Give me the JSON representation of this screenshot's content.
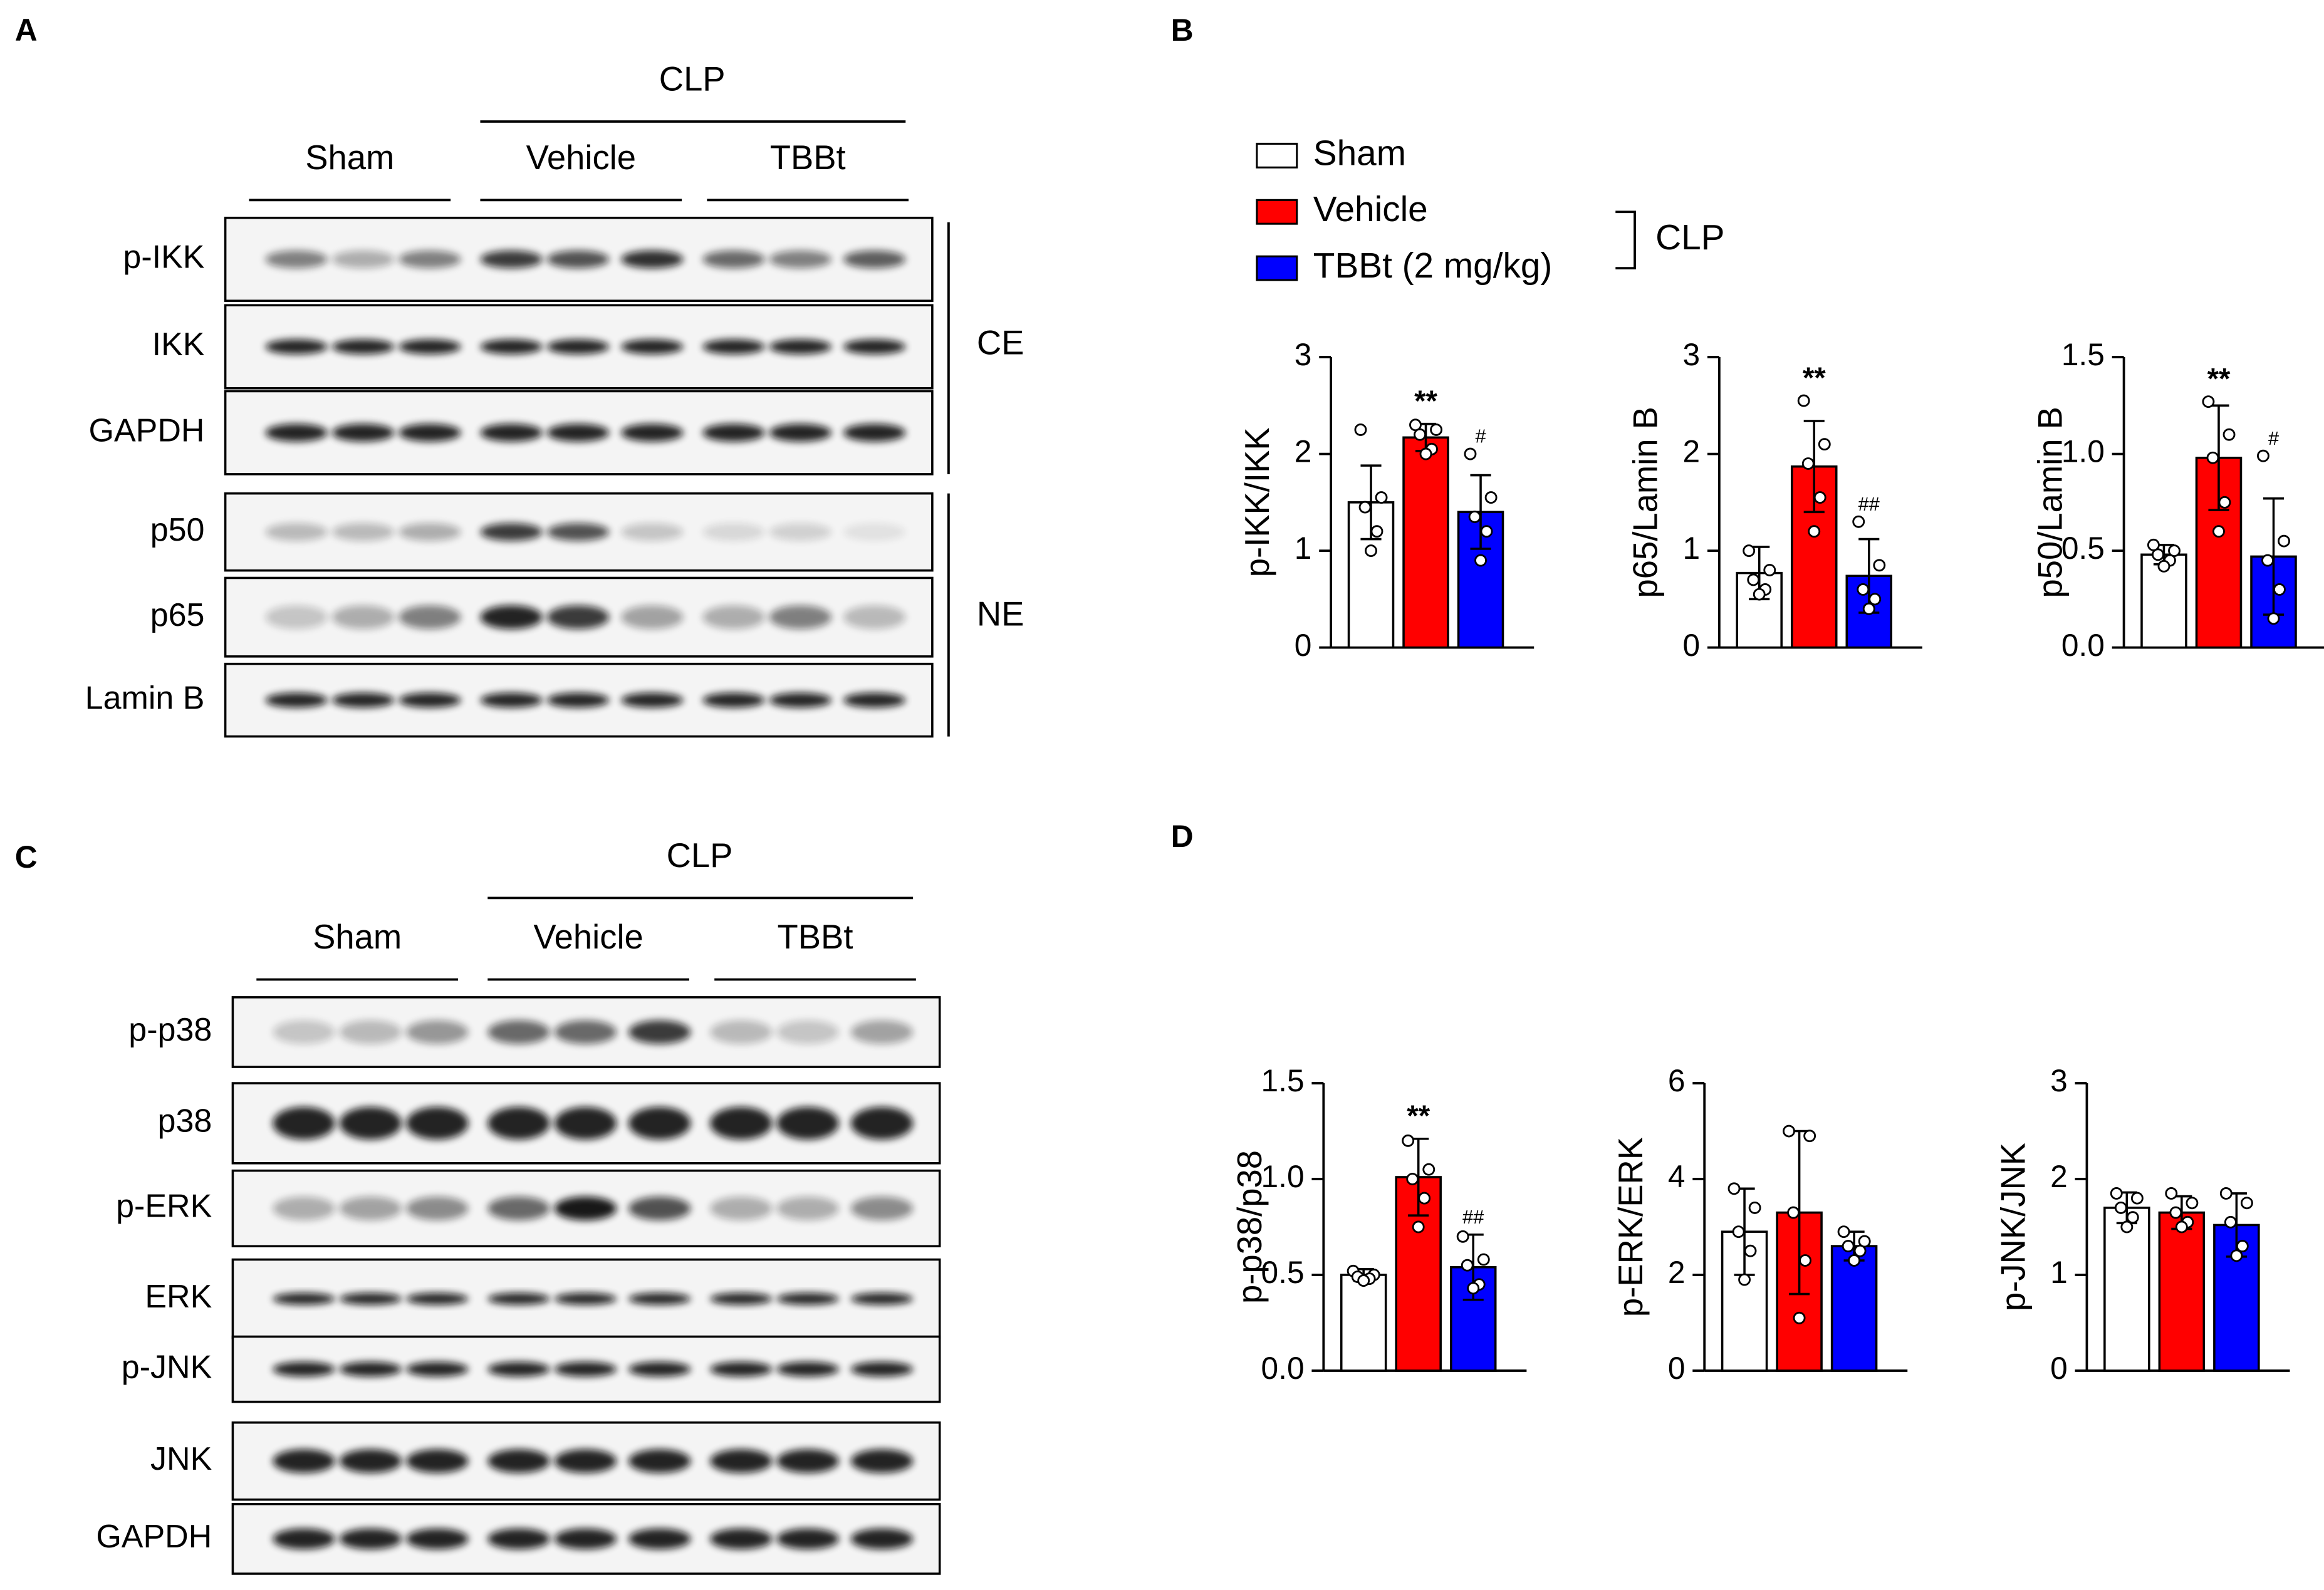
{
  "panel_labels": [
    "A",
    "B",
    "C",
    "D"
  ],
  "blot_A": {
    "group_header": "CLP",
    "groups": [
      "Sham",
      "Vehicle",
      "TBBt"
    ],
    "rows": [
      "p-IKK",
      "IKK",
      "GAPDH",
      "p50",
      "p65",
      "Lamin B"
    ],
    "fractions": [
      "CE",
      "NE"
    ]
  },
  "blot_C": {
    "group_header": "CLP",
    "groups": [
      "Sham",
      "Vehicle",
      "TBBt"
    ],
    "rows": [
      "p-p38",
      "p38",
      "p-ERK",
      "ERK",
      "p-JNK",
      "JNK",
      "GAPDH"
    ]
  },
  "legend": {
    "items": [
      {
        "name": "Sham",
        "color": "#ffffff"
      },
      {
        "name": "Vehicle",
        "color": "#ff0000"
      },
      {
        "name": "TBBt (2 mg/kg)",
        "color": "#0000ff"
      }
    ],
    "bracket": "CLP"
  },
  "chart_data": [
    {
      "type": "bar",
      "ylabel": "p-IKK/IKK",
      "categories": [
        null,
        null,
        null
      ],
      "colors": [
        "#ffffff",
        "#ff0000",
        "#0000ff"
      ],
      "values": [
        1.5,
        2.17,
        1.4
      ],
      "errors": [
        0.38,
        0.14,
        0.38
      ],
      "points": [
        [
          2.25,
          1.55,
          1.45,
          1.2,
          1.0
        ],
        [
          2.3,
          2.25,
          2.2,
          2.05,
          2.0
        ],
        [
          2.0,
          1.55,
          1.35,
          1.2,
          0.9
        ]
      ],
      "value_annotations": [
        null,
        "**",
        "#"
      ],
      "ylim": [
        0,
        3
      ],
      "yticks": [
        0,
        1,
        2,
        3
      ]
    },
    {
      "type": "bar",
      "ylabel": "p65/Lamin B",
      "categories": [
        null,
        null,
        null
      ],
      "colors": [
        "#ffffff",
        "#ff0000",
        "#0000ff"
      ],
      "values": [
        0.77,
        1.87,
        0.74
      ],
      "errors": [
        0.27,
        0.47,
        0.38
      ],
      "points": [
        [
          1.0,
          0.8,
          0.7,
          0.6,
          0.55
        ],
        [
          2.55,
          2.1,
          1.9,
          1.55,
          1.2
        ],
        [
          1.3,
          0.85,
          0.6,
          0.5,
          0.4
        ]
      ],
      "value_annotations": [
        null,
        "**",
        "##"
      ],
      "ylim": [
        0,
        3
      ],
      "yticks": [
        0,
        1,
        2,
        3
      ]
    },
    {
      "type": "bar",
      "ylabel": "p50/Lamin B",
      "categories": [
        null,
        null,
        null
      ],
      "colors": [
        "#ffffff",
        "#ff0000",
        "#0000ff"
      ],
      "values": [
        0.48,
        0.98,
        0.47
      ],
      "errors": [
        0.05,
        0.27,
        0.3
      ],
      "points": [
        [
          0.53,
          0.5,
          0.48,
          0.45,
          0.42
        ],
        [
          1.27,
          1.1,
          0.98,
          0.75,
          0.6
        ],
        [
          0.99,
          0.55,
          0.45,
          0.3,
          0.15
        ]
      ],
      "value_annotations": [
        null,
        "**",
        "#"
      ],
      "ylim": [
        0,
        1.5
      ],
      "yticks": [
        {
          "value": 0,
          "label": "0.0"
        },
        {
          "value": 0.5,
          "label": "0.5"
        },
        {
          "value": 1,
          "label": "1.0"
        },
        {
          "value": 1.5,
          "label": "1.5"
        }
      ]
    },
    {
      "type": "bar",
      "ylabel": "p-p38/p38",
      "categories": [
        null,
        null,
        null
      ],
      "colors": [
        "#ffffff",
        "#ff0000",
        "#0000ff"
      ],
      "values": [
        0.5,
        1.01,
        0.54
      ],
      "errors": [
        0.03,
        0.2,
        0.17
      ],
      "points": [
        [
          0.52,
          0.5,
          0.49,
          0.48,
          0.47
        ],
        [
          1.2,
          1.05,
          1.0,
          0.9,
          0.75
        ],
        [
          0.7,
          0.58,
          0.55,
          0.45,
          0.43
        ]
      ],
      "value_annotations": [
        null,
        "**",
        "##"
      ],
      "ylim": [
        0,
        1.5
      ],
      "yticks": [
        {
          "value": 0,
          "label": "0.0"
        },
        {
          "value": 0.5,
          "label": "0.5"
        },
        {
          "value": 1,
          "label": "1.0"
        },
        {
          "value": 1.5,
          "label": "1.5"
        }
      ]
    },
    {
      "type": "bar",
      "ylabel": "p-ERK/ERK",
      "categories": [
        null,
        null,
        null
      ],
      "colors": [
        "#ffffff",
        "#ff0000",
        "#0000ff"
      ],
      "values": [
        2.9,
        3.3,
        2.6
      ],
      "errors": [
        0.9,
        1.7,
        0.3
      ],
      "points": [
        [
          3.8,
          3.4,
          2.9,
          2.5,
          1.9
        ],
        [
          5.0,
          4.9,
          3.3,
          2.3,
          1.1
        ],
        [
          2.9,
          2.7,
          2.6,
          2.5,
          2.3
        ]
      ],
      "ylim": [
        0,
        6
      ],
      "yticks": [
        0,
        2,
        4,
        6
      ]
    },
    {
      "type": "bar",
      "ylabel": "p-JNK/JNK",
      "categories": [
        null,
        null,
        null
      ],
      "colors": [
        "#ffffff",
        "#ff0000",
        "#0000ff"
      ],
      "values": [
        1.7,
        1.65,
        1.52
      ],
      "errors": [
        0.16,
        0.17,
        0.33
      ],
      "points": [
        [
          1.85,
          1.8,
          1.7,
          1.6,
          1.5
        ],
        [
          1.85,
          1.75,
          1.65,
          1.55,
          1.5
        ],
        [
          1.85,
          1.75,
          1.55,
          1.3,
          1.2
        ]
      ],
      "ylim": [
        0,
        3
      ],
      "yticks": [
        0,
        1,
        2,
        3
      ]
    }
  ]
}
